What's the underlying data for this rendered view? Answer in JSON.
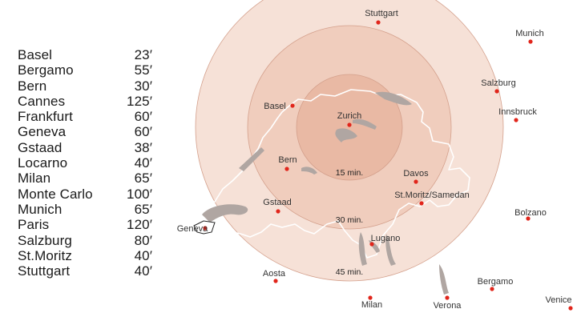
{
  "flight_times": [
    {
      "city": "Basel",
      "time": "23′"
    },
    {
      "city": "Bergamo",
      "time": "55′"
    },
    {
      "city": "Bern",
      "time": "30′"
    },
    {
      "city": "Cannes",
      "time": "125′"
    },
    {
      "city": "Frankfurt",
      "time": "60′"
    },
    {
      "city": "Geneva",
      "time": "60′"
    },
    {
      "city": "Gstaad",
      "time": "38′"
    },
    {
      "city": "Locarno",
      "time": "40′"
    },
    {
      "city": "Milan",
      "time": "65′"
    },
    {
      "city": "Monte Carlo",
      "time": "100′"
    },
    {
      "city": "Munich",
      "time": "65′"
    },
    {
      "city": "Paris",
      "time": "120′"
    },
    {
      "city": "Salzburg",
      "time": "80′"
    },
    {
      "city": "St.Moritz",
      "time": "40′"
    },
    {
      "city": "Stuttgart",
      "time": "40′"
    }
  ],
  "rings": [
    {
      "label": "45 min.",
      "color": "#f6e1d7"
    },
    {
      "label": "30 min.",
      "color": "#f0cdbd"
    },
    {
      "label": "15 min.",
      "color": "#e9b9a4"
    }
  ],
  "map_cities": [
    {
      "name": "Stuttgart"
    },
    {
      "name": "Munich"
    },
    {
      "name": "Salzburg"
    },
    {
      "name": "Innsbruck"
    },
    {
      "name": "Basel"
    },
    {
      "name": "Zurich"
    },
    {
      "name": "Bern"
    },
    {
      "name": "Davos"
    },
    {
      "name": "St.Moritz/Samedan"
    },
    {
      "name": "Gstaad"
    },
    {
      "name": "Bolzano"
    },
    {
      "name": "Geneva"
    },
    {
      "name": "Lugano"
    },
    {
      "name": "Aosta"
    },
    {
      "name": "Bergamo"
    },
    {
      "name": "Milan"
    },
    {
      "name": "Verona"
    },
    {
      "name": "Venice"
    }
  ],
  "colors": {
    "city_dot": "#e1251b",
    "border": "#ffffff",
    "lake": "#b0a6a2",
    "ring_stroke": "#d4a08c"
  }
}
